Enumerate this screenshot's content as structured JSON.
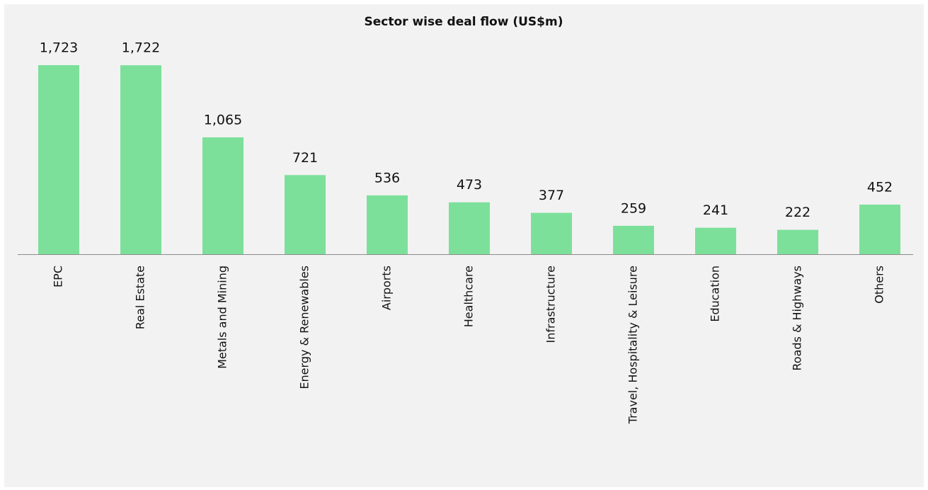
{
  "chart_data": {
    "type": "bar",
    "title": "Sector wise deal flow (US$m)",
    "categories": [
      "EPC",
      "Real Estate",
      "Metals and Mining",
      "Energy & Renewables",
      "Airports",
      "Healthcare",
      "Infrastructure",
      "Travel, Hospitality & Leisure",
      "Education",
      "Roads & Highways",
      "Others"
    ],
    "values": [
      1723,
      1722,
      1065,
      721,
      536,
      473,
      377,
      259,
      241,
      222,
      452
    ],
    "value_labels": [
      "1,723",
      "1,722",
      "1,065",
      "721",
      "536",
      "473",
      "377",
      "259",
      "241",
      "222",
      "452"
    ],
    "color": "#7ce09a"
  }
}
